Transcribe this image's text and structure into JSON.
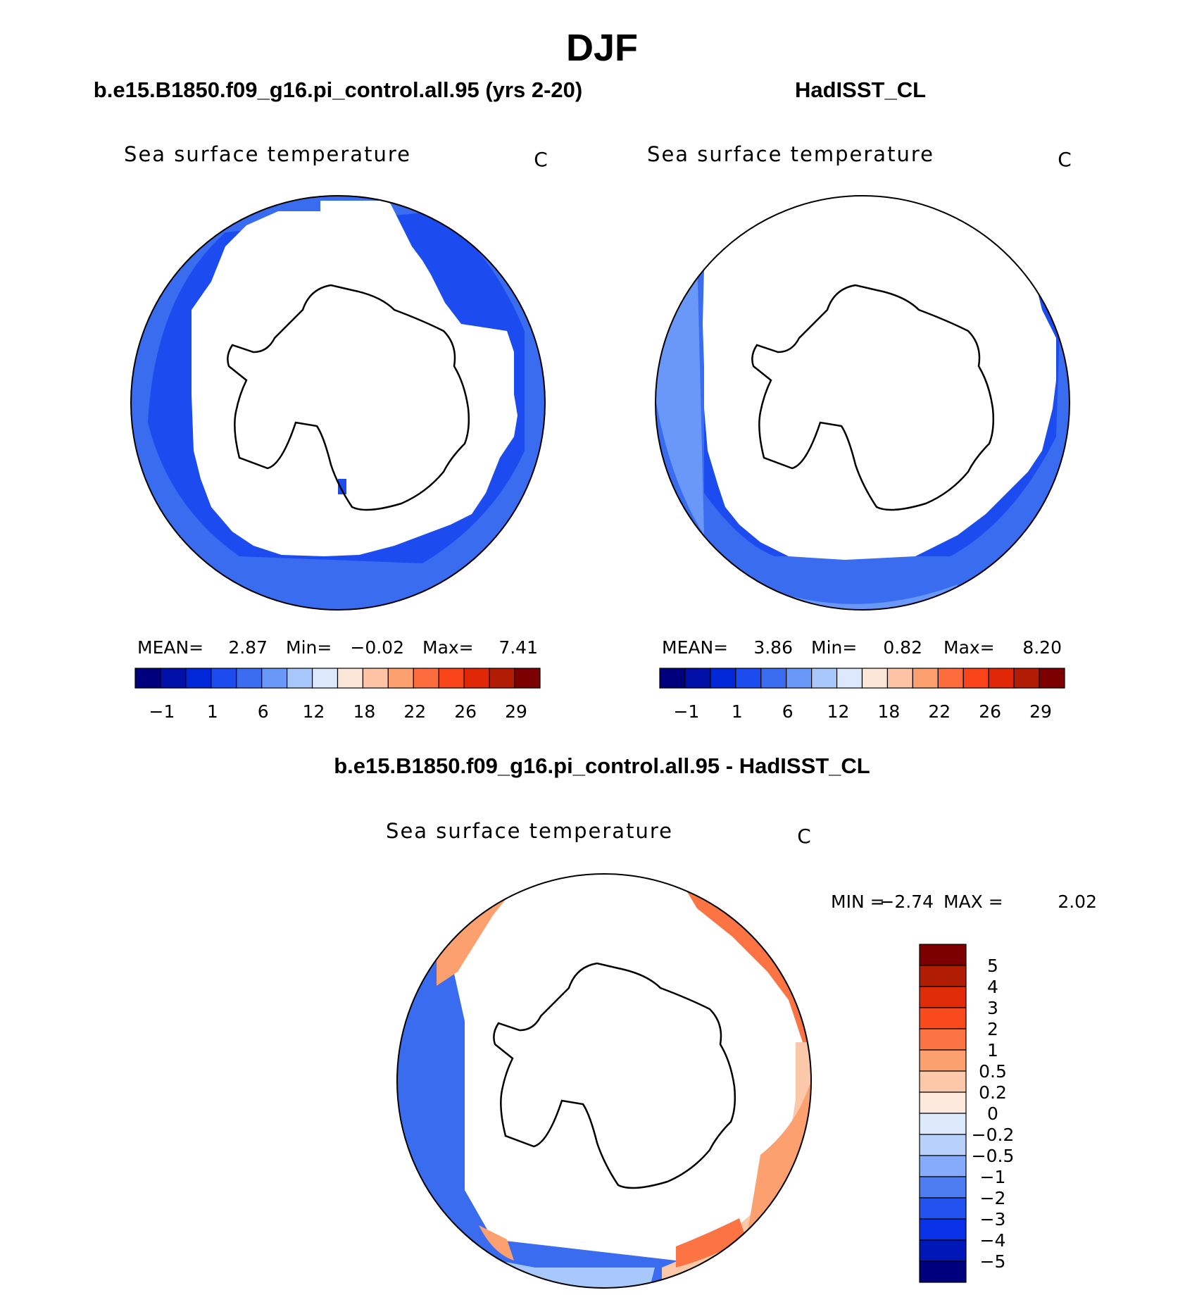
{
  "title": "DJF",
  "colors": {
    "abs_scale": [
      "#00007f",
      "#0010a8",
      "#0028d8",
      "#1c4cf0",
      "#3a6cf0",
      "#6a98f8",
      "#a8c8fc",
      "#dce8fc",
      "#fce6d8",
      "#fcc4a4",
      "#fca070",
      "#fc6c3c",
      "#f84418",
      "#e02808",
      "#b01c04",
      "#7c0000"
    ],
    "diff_scale": [
      "#00007f",
      "#0018b8",
      "#0a32e8",
      "#2452f0",
      "#4c7cf0",
      "#86aafc",
      "#b8d0fc",
      "#dceafc",
      "#fdeadc",
      "#fcc8aa",
      "#fca070",
      "#fc7444",
      "#f84a1c",
      "#e02c08",
      "#b01c04",
      "#7c0000"
    ],
    "coast": "#000000",
    "frame": "#000000"
  },
  "chart_data": [
    {
      "type": "polar-map",
      "heading": "b.e15.B1850.f09_g16.pi_control.all.95 (yrs 2-20)",
      "title": "Sea surface temperature",
      "units": "C",
      "stats": {
        "mean_label": "MEAN=",
        "mean": "2.87",
        "min_label": "Min=",
        "min": "−0.02",
        "max_label": "Max=",
        "max": "7.41"
      },
      "colorbar_ticks": [
        "−1",
        "1",
        "6",
        "12",
        "18",
        "22",
        "26",
        "29"
      ],
      "ice_edge_radius_fraction": 0.72,
      "levels": [
        {
          "color_index": 4,
          "from_r": 0.72,
          "to_r": 0.9
        },
        {
          "color_index": 3,
          "from_r": 0.9,
          "to_r": 1.0
        }
      ]
    },
    {
      "type": "polar-map",
      "heading": "HadISST_CL",
      "title": "Sea surface temperature",
      "units": "C",
      "stats": {
        "mean_label": "MEAN=",
        "mean": "3.86",
        "min_label": "Min=",
        "min": "0.82",
        "max_label": "Max=",
        "max": "8.20"
      },
      "colorbar_ticks": [
        "−1",
        "1",
        "6",
        "12",
        "18",
        "22",
        "26",
        "29"
      ],
      "ice_edge_radius_fraction": 0.76,
      "levels": [
        {
          "color_index": 3,
          "from_r": 0.76,
          "to_r": 0.9
        },
        {
          "color_index": 4,
          "from_r": 0.9,
          "to_r": 0.97
        },
        {
          "color_index": 5,
          "from_r": 0.97,
          "to_r": 1.0
        }
      ]
    },
    {
      "type": "polar-map",
      "heading": "b.e15.B1850.f09_g16.pi_control.all.95 - HadISST_CL",
      "title": "Sea surface temperature",
      "units": "C",
      "stats": {
        "min_label": "MIN =",
        "min": "−2.74",
        "max_label": "MAX =",
        "max": "2.02"
      },
      "colorbar_ticks": [
        "5",
        "4",
        "3",
        "2",
        "1",
        "0.5",
        "0.2",
        "0",
        "−0.2",
        "−0.5",
        "−1",
        "−2",
        "−3",
        "−4",
        "−5"
      ],
      "sectors": [
        {
          "label": "west-negative",
          "color_index": 4
        },
        {
          "label": "east-positive",
          "color_index": 10
        },
        {
          "label": "north-positive",
          "color_index": 11
        }
      ]
    }
  ]
}
